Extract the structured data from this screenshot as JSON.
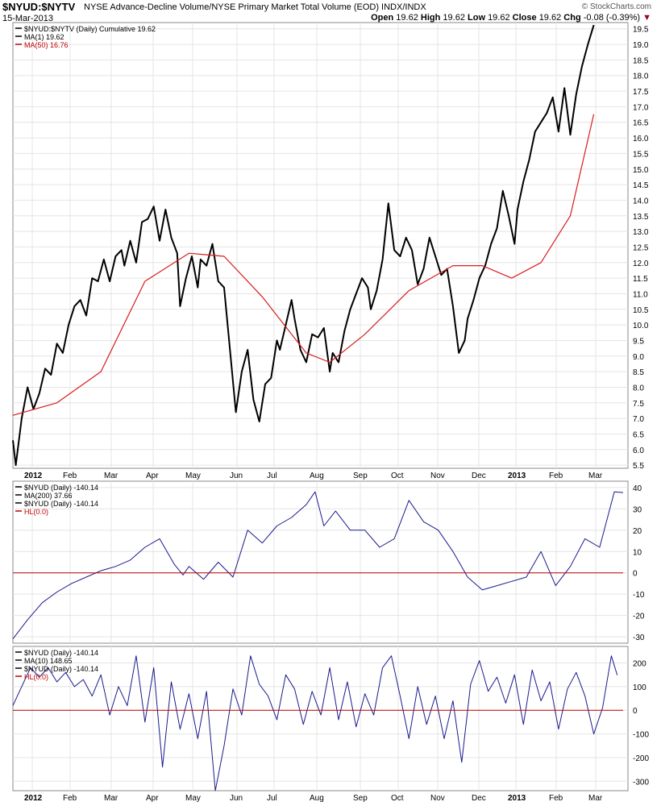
{
  "header": {
    "symbol": "$NYUD:$NYTV",
    "description": "NYSE Advance-Decline Volume/NYSE Primary Market Total Volume (EOD) INDX/INDX",
    "date": "15-Mar-2013",
    "brand": "© StockCharts.com",
    "quote": {
      "open_label": "Open",
      "open": "19.62",
      "high_label": "High",
      "high": "19.62",
      "low_label": "Low",
      "low": "19.62",
      "close_label": "Close",
      "close": "19.62",
      "chg_label": "Chg",
      "chg": "-0.08 (-0.39%)",
      "arrow": "▼"
    }
  },
  "colors": {
    "price": "#000000",
    "ma50": "#d81c1c",
    "indicator": "#1a1a8c",
    "zero_line": "#c00000",
    "grid": "#e4e4e4"
  },
  "chart_data": [
    {
      "type": "line",
      "panel": "price",
      "legend": [
        "$NYUD:$NYTV (Daily) Cumulative 19.62",
        "MA(1) 19.62",
        "MA(50) 16.76"
      ],
      "y_ticks": [
        "5.5",
        "6.0",
        "6.5",
        "7.0",
        "7.5",
        "8.0",
        "8.5",
        "9.0",
        "9.5",
        "10.0",
        "10.5",
        "11.0",
        "11.5",
        "12.0",
        "12.5",
        "13.0",
        "13.5",
        "14.0",
        "14.5",
        "15.0",
        "15.5",
        "16.0",
        "16.5",
        "17.0",
        "17.5",
        "18.0",
        "18.5",
        "19.0",
        "19.5"
      ],
      "ylim": [
        5.4,
        19.7
      ],
      "x_labels": [
        "2012",
        "Feb",
        "Mar",
        "Apr",
        "May",
        "Jun",
        "Jul",
        "Aug",
        "Sep",
        "Oct",
        "Nov",
        "Dec",
        "2013",
        "Feb",
        "Mar"
      ],
      "series": [
        {
          "name": "$NYUD:$NYTV (Daily) Cumulative",
          "values": [
            [
              0,
              6.3
            ],
            [
              1,
              5.5
            ],
            [
              3,
              7.0
            ],
            [
              5,
              8.0
            ],
            [
              7,
              7.3
            ],
            [
              9,
              7.8
            ],
            [
              11,
              8.6
            ],
            [
              13,
              8.4
            ],
            [
              15,
              9.4
            ],
            [
              17,
              9.1
            ],
            [
              19,
              10.0
            ],
            [
              21,
              10.6
            ],
            [
              23,
              10.8
            ],
            [
              25,
              10.3
            ],
            [
              27,
              11.5
            ],
            [
              29,
              11.4
            ],
            [
              31,
              12.1
            ],
            [
              33,
              11.4
            ],
            [
              35,
              12.2
            ],
            [
              37,
              12.4
            ],
            [
              38,
              11.9
            ],
            [
              40,
              12.7
            ],
            [
              42,
              12.0
            ],
            [
              44,
              13.3
            ],
            [
              46,
              13.4
            ],
            [
              48,
              13.8
            ],
            [
              50,
              12.7
            ],
            [
              52,
              13.7
            ],
            [
              54,
              12.8
            ],
            [
              56,
              12.3
            ],
            [
              57,
              10.6
            ],
            [
              59,
              11.5
            ],
            [
              61,
              12.2
            ],
            [
              63,
              11.2
            ],
            [
              64,
              12.1
            ],
            [
              66,
              11.9
            ],
            [
              68,
              12.6
            ],
            [
              70,
              11.4
            ],
            [
              72,
              11.2
            ],
            [
              74,
              9.2
            ],
            [
              76,
              7.2
            ],
            [
              78,
              8.5
            ],
            [
              80,
              9.2
            ],
            [
              82,
              7.6
            ],
            [
              84,
              6.9
            ],
            [
              86,
              8.1
            ],
            [
              88,
              8.3
            ],
            [
              90,
              9.5
            ],
            [
              91,
              9.2
            ],
            [
              93,
              10.0
            ],
            [
              95,
              10.8
            ],
            [
              96,
              10.2
            ],
            [
              98,
              9.2
            ],
            [
              100,
              8.8
            ],
            [
              102,
              9.7
            ],
            [
              104,
              9.6
            ],
            [
              106,
              9.9
            ],
            [
              108,
              8.5
            ],
            [
              109,
              9.1
            ],
            [
              111,
              8.8
            ],
            [
              113,
              9.8
            ],
            [
              115,
              10.5
            ],
            [
              117,
              11.0
            ],
            [
              119,
              11.5
            ],
            [
              121,
              11.2
            ],
            [
              122,
              10.5
            ],
            [
              124,
              11.1
            ],
            [
              126,
              12.1
            ],
            [
              128,
              13.9
            ],
            [
              130,
              12.4
            ],
            [
              132,
              12.2
            ],
            [
              134,
              12.8
            ],
            [
              136,
              12.4
            ],
            [
              138,
              11.3
            ],
            [
              140,
              11.8
            ],
            [
              142,
              12.8
            ],
            [
              144,
              12.2
            ],
            [
              146,
              11.6
            ],
            [
              148,
              11.8
            ],
            [
              150,
              10.6
            ],
            [
              152,
              9.1
            ],
            [
              154,
              9.5
            ],
            [
              155,
              10.2
            ],
            [
              157,
              10.8
            ],
            [
              159,
              11.5
            ],
            [
              161,
              11.9
            ],
            [
              163,
              12.6
            ],
            [
              165,
              13.1
            ],
            [
              167,
              14.3
            ],
            [
              169,
              13.5
            ],
            [
              171,
              12.6
            ],
            [
              172,
              13.7
            ],
            [
              174,
              14.6
            ],
            [
              176,
              15.3
            ],
            [
              178,
              16.2
            ],
            [
              180,
              16.5
            ],
            [
              182,
              16.8
            ],
            [
              184,
              17.3
            ],
            [
              186,
              16.2
            ],
            [
              188,
              17.6
            ],
            [
              190,
              16.1
            ],
            [
              192,
              17.4
            ],
            [
              194,
              18.3
            ],
            [
              196,
              19.0
            ],
            [
              198,
              19.62
            ]
          ]
        },
        {
          "name": "MA(50)",
          "values": [
            [
              0,
              7.1
            ],
            [
              15,
              7.5
            ],
            [
              30,
              8.5
            ],
            [
              45,
              11.4
            ],
            [
              60,
              12.3
            ],
            [
              72,
              12.2
            ],
            [
              85,
              10.9
            ],
            [
              100,
              9.1
            ],
            [
              108,
              8.8
            ],
            [
              120,
              9.7
            ],
            [
              135,
              11.1
            ],
            [
              150,
              11.9
            ],
            [
              160,
              11.9
            ],
            [
              170,
              11.5
            ],
            [
              180,
              12.0
            ],
            [
              190,
              13.5
            ],
            [
              198,
              16.76
            ]
          ]
        }
      ]
    },
    {
      "type": "line",
      "panel": "indicator_1",
      "legend": [
        "$NYUD (Daily) -140.14",
        "MA(200) 37.66",
        "$NYUD (Daily) -140.14",
        "HL(0.0)"
      ],
      "y_ticks": [
        "-30",
        "-20",
        "-10",
        "0",
        "10",
        "20",
        "30",
        "40"
      ],
      "ylim": [
        -33,
        43
      ],
      "x_labels": [],
      "series": [
        {
          "name": "MA(200)",
          "values": [
            [
              0,
              -31
            ],
            [
              5,
              -22
            ],
            [
              10,
              -14
            ],
            [
              15,
              -9
            ],
            [
              20,
              -5
            ],
            [
              25,
              -2
            ],
            [
              30,
              1
            ],
            [
              35,
              3
            ],
            [
              40,
              6
            ],
            [
              45,
              12
            ],
            [
              50,
              16
            ],
            [
              55,
              4
            ],
            [
              58,
              -1
            ],
            [
              60,
              3
            ],
            [
              65,
              -3
            ],
            [
              70,
              5
            ],
            [
              75,
              -2
            ],
            [
              80,
              20
            ],
            [
              85,
              14
            ],
            [
              90,
              22
            ],
            [
              95,
              26
            ],
            [
              100,
              32
            ],
            [
              103,
              38
            ],
            [
              106,
              22
            ],
            [
              110,
              29
            ],
            [
              115,
              20
            ],
            [
              120,
              20
            ],
            [
              125,
              12
            ],
            [
              130,
              16
            ],
            [
              135,
              34
            ],
            [
              140,
              24
            ],
            [
              145,
              20
            ],
            [
              150,
              10
            ],
            [
              155,
              -2
            ],
            [
              160,
              -8
            ],
            [
              165,
              -6
            ],
            [
              170,
              -4
            ],
            [
              175,
              -2
            ],
            [
              180,
              10
            ],
            [
              185,
              -6
            ],
            [
              190,
              3
            ],
            [
              195,
              16
            ],
            [
              200,
              12
            ],
            [
              205,
              38
            ],
            [
              208,
              37.66
            ]
          ]
        },
        {
          "name": "HL",
          "values": [
            [
              0,
              0
            ],
            [
              208,
              0
            ]
          ]
        }
      ]
    },
    {
      "type": "line",
      "panel": "indicator_2",
      "legend": [
        "$NYUD (Daily) -140.14",
        "MA(10) 148.65",
        "$NYUD (Daily) -140.14",
        "HL(0.0)"
      ],
      "y_ticks": [
        "-300",
        "-200",
        "-100",
        "0",
        "100",
        "200"
      ],
      "ylim": [
        -340,
        270
      ],
      "x_labels": [
        "2012",
        "Feb",
        "Mar",
        "Apr",
        "May",
        "Jun",
        "Jul",
        "Aug",
        "Sep",
        "Oct",
        "Nov",
        "Dec",
        "2013",
        "Feb",
        "Mar"
      ],
      "series": [
        {
          "name": "MA(10)",
          "values": [
            [
              0,
              20
            ],
            [
              3,
              100
            ],
            [
              6,
              180
            ],
            [
              9,
              140
            ],
            [
              12,
              180
            ],
            [
              15,
              120
            ],
            [
              18,
              160
            ],
            [
              21,
              100
            ],
            [
              24,
              130
            ],
            [
              27,
              60
            ],
            [
              30,
              150
            ],
            [
              33,
              -20
            ],
            [
              36,
              100
            ],
            [
              39,
              20
            ],
            [
              42,
              230
            ],
            [
              45,
              -50
            ],
            [
              48,
              180
            ],
            [
              51,
              -240
            ],
            [
              54,
              120
            ],
            [
              57,
              -80
            ],
            [
              60,
              70
            ],
            [
              63,
              -120
            ],
            [
              66,
              80
            ],
            [
              69,
              -340
            ],
            [
              72,
              -150
            ],
            [
              75,
              90
            ],
            [
              78,
              -20
            ],
            [
              81,
              230
            ],
            [
              84,
              110
            ],
            [
              87,
              60
            ],
            [
              90,
              -40
            ],
            [
              93,
              150
            ],
            [
              96,
              90
            ],
            [
              99,
              -60
            ],
            [
              102,
              80
            ],
            [
              105,
              -20
            ],
            [
              108,
              180
            ],
            [
              111,
              -40
            ],
            [
              114,
              120
            ],
            [
              117,
              -70
            ],
            [
              120,
              70
            ],
            [
              123,
              -20
            ],
            [
              126,
              180
            ],
            [
              129,
              230
            ],
            [
              132,
              60
            ],
            [
              135,
              -120
            ],
            [
              138,
              100
            ],
            [
              141,
              -60
            ],
            [
              144,
              60
            ],
            [
              147,
              -120
            ],
            [
              150,
              40
            ],
            [
              153,
              -220
            ],
            [
              156,
              110
            ],
            [
              159,
              210
            ],
            [
              162,
              80
            ],
            [
              165,
              140
            ],
            [
              168,
              30
            ],
            [
              171,
              150
            ],
            [
              174,
              -60
            ],
            [
              177,
              170
            ],
            [
              180,
              40
            ],
            [
              183,
              120
            ],
            [
              186,
              -80
            ],
            [
              189,
              90
            ],
            [
              192,
              160
            ],
            [
              195,
              60
            ],
            [
              198,
              -100
            ],
            [
              201,
              10
            ],
            [
              204,
              230
            ],
            [
              206,
              148.65
            ]
          ]
        },
        {
          "name": "HL",
          "values": [
            [
              0,
              0
            ],
            [
              208,
              0
            ]
          ]
        }
      ]
    }
  ]
}
